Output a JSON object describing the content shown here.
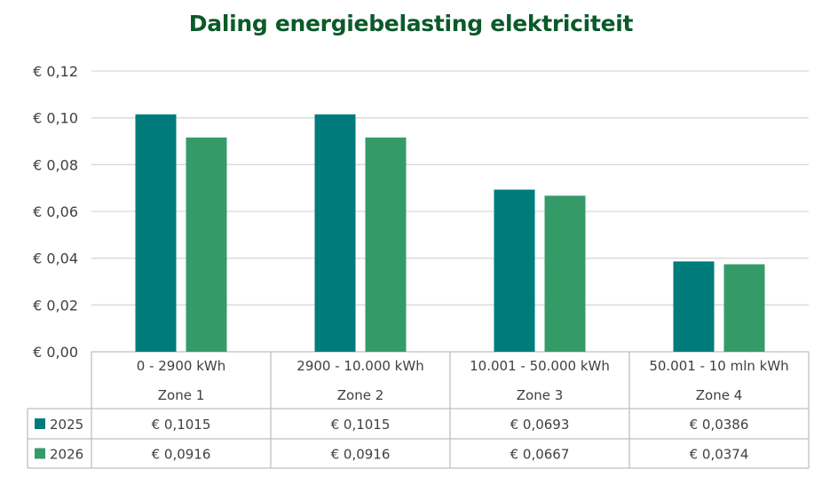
{
  "chart_data": {
    "type": "bar",
    "title": "Daling energiebelasting elektriciteit",
    "categories": [
      [
        "0 - 2900 kWh",
        "Zone 1"
      ],
      [
        "2900 - 10.000 kWh",
        "Zone 2"
      ],
      [
        "10.001 - 50.000 kWh",
        "Zone 3"
      ],
      [
        "50.001 - 10 mln kWh",
        "Zone 4"
      ]
    ],
    "series": [
      {
        "name": "2025",
        "color": "#007b7b",
        "values": [
          0.1015,
          0.1015,
          0.0693,
          0.0386
        ],
        "labels": [
          "€ 0,1015",
          "€ 0,1015",
          "€ 0,0693",
          "€ 0,0386"
        ]
      },
      {
        "name": "2026",
        "color": "#349b68",
        "values": [
          0.0916,
          0.0916,
          0.0667,
          0.0374
        ],
        "labels": [
          "€ 0,0916",
          "€ 0,0916",
          "€ 0,0667",
          "€ 0,0374"
        ]
      }
    ],
    "ylim": [
      0,
      0.12
    ],
    "yticks": [
      0,
      0.02,
      0.04,
      0.06,
      0.08,
      0.1,
      0.12
    ],
    "ytick_labels": [
      "€ 0,00",
      "€ 0,02",
      "€ 0,04",
      "€ 0,06",
      "€ 0,08",
      "€ 0,10",
      "€ 0,12"
    ],
    "grid": true,
    "legend": "data-table"
  }
}
